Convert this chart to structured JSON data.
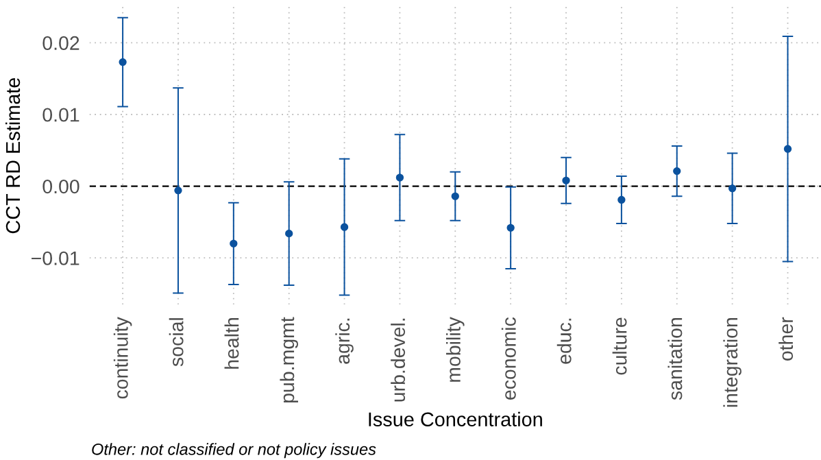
{
  "chart_data": {
    "type": "scatter",
    "xlabel": "Issue Concentration",
    "ylabel": "CCT RD Estimate",
    "annotations": [
      "Other: not classified or not policy issues"
    ],
    "categories": [
      "continuity",
      "social",
      "health",
      "pub.mgmt",
      "agric.",
      "urb.devel.",
      "mobility",
      "economic",
      "educ.",
      "culture",
      "sanitation",
      "integration",
      "other"
    ],
    "values": [
      0.0173,
      -0.0006,
      -0.008,
      -0.0066,
      -0.0057,
      0.0012,
      -0.0014,
      -0.0058,
      0.0008,
      -0.0019,
      0.0021,
      -0.0003,
      0.0052
    ],
    "errors": [
      0.0062,
      0.0143,
      0.0057,
      0.0072,
      0.0095,
      0.006,
      0.0034,
      0.0057,
      0.0032,
      0.0033,
      0.0035,
      0.0049,
      0.0157
    ],
    "color": "#0b529e",
    "marker": "circle",
    "ylim": [
      -0.0165,
      0.025
    ],
    "yticks": [
      0.02,
      0.01,
      {
        "value": 0,
        "label": "0.00"
      },
      {
        "value": -0.01,
        "label": "−0.01"
      }
    ],
    "grid": true,
    "ref_lines": [
      {
        "axis": "y",
        "value": 0,
        "color": "#000000",
        "line_style": "dashed"
      }
    ]
  }
}
